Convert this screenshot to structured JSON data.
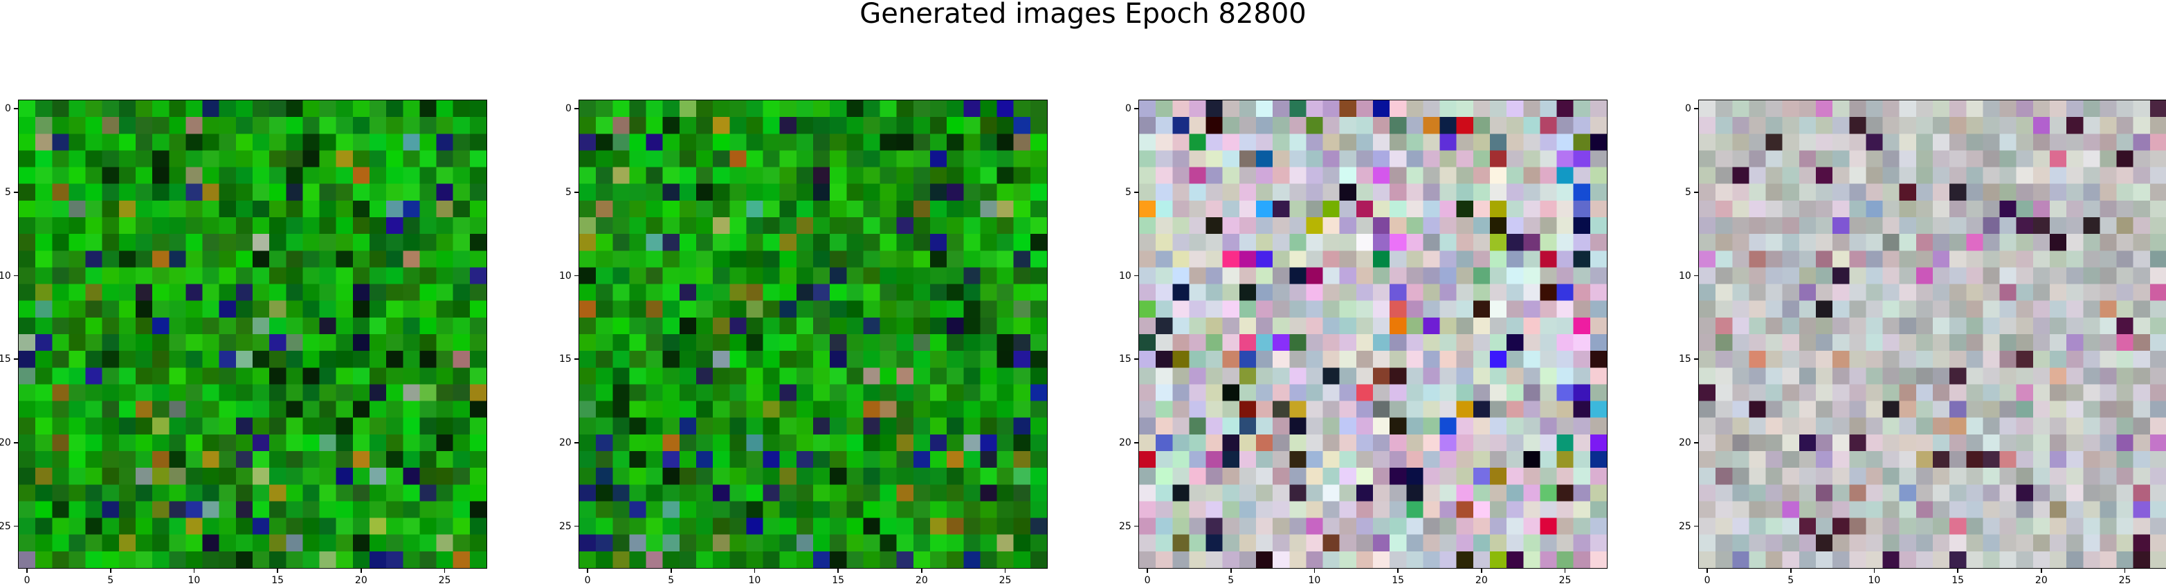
{
  "title": "Generated images Epoch 82800",
  "chart_data": [
    {
      "type": "heatmap",
      "image_size": 28,
      "xticks": [
        "0",
        "5",
        "10",
        "15",
        "20",
        "25"
      ],
      "yticks": [
        "0",
        "5",
        "10",
        "15",
        "20",
        "25"
      ],
      "xlim": [
        -0.5,
        27.5
      ],
      "ylim": [
        27.5,
        -0.5
      ],
      "palette": "green noise",
      "colors": {
        "base": "#1a8a1a",
        "dark": "#0b3d0b",
        "accent": "#2a5aa0"
      }
    },
    {
      "type": "heatmap",
      "image_size": 28,
      "xticks": [
        "0",
        "5",
        "10",
        "15",
        "20",
        "25"
      ],
      "yticks": [
        "0",
        "5",
        "10",
        "15",
        "20",
        "25"
      ],
      "xlim": [
        -0.5,
        27.5
      ],
      "ylim": [
        27.5,
        -0.5
      ],
      "palette": "green noise",
      "colors": {
        "base": "#157a15",
        "dark": "#0a2f0a",
        "accent": "#2a1a70"
      }
    },
    {
      "type": "heatmap",
      "image_size": 28,
      "xticks": [
        "0",
        "5",
        "10",
        "15",
        "20",
        "25"
      ],
      "yticks": [
        "0",
        "5",
        "10",
        "15",
        "20",
        "25"
      ],
      "xlim": [
        -0.5,
        27.5
      ],
      "ylim": [
        27.5,
        -0.5
      ],
      "palette": "pastel multicolor noise",
      "colors": {
        "base": "#f2e6ee",
        "dark": "#1a1a2a",
        "accent": "#e0208a"
      }
    },
    {
      "type": "heatmap",
      "image_size": 28,
      "xticks": [
        "0",
        "5",
        "10",
        "15",
        "20",
        "25"
      ],
      "yticks": [
        "0",
        "5",
        "10",
        "15",
        "20",
        "25"
      ],
      "xlim": [
        -0.5,
        27.5
      ],
      "ylim": [
        27.5,
        -0.5
      ],
      "palette": "muted pastel noise",
      "colors": {
        "base": "#d8d0d8",
        "dark": "#3a1a30",
        "accent": "#a04080"
      }
    }
  ]
}
